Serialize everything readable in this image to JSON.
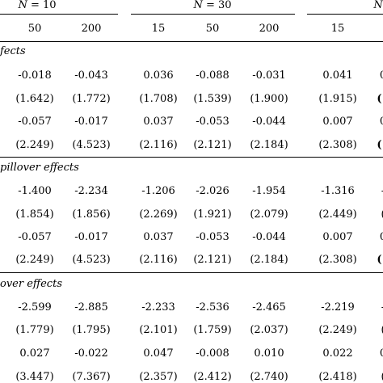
{
  "header": {
    "groups": [
      {
        "label_var": "N",
        "label_eq": " = 10"
      },
      {
        "label_var": "N",
        "label_eq": " = 30"
      },
      {
        "label_var": "N",
        "label_eq": ""
      }
    ],
    "columns": [
      "50",
      "200",
      "15",
      "50",
      "200",
      "15"
    ]
  },
  "sections": [
    {
      "title": "fects",
      "rows": [
        [
          "-0.018",
          "-0.043",
          "0.036",
          "-0.088",
          "-0.031",
          "0.041",
          "0"
        ],
        [
          "(1.642)",
          "(1.772)",
          "(1.708)",
          "(1.539)",
          "(1.900)",
          "(1.915)",
          "(1"
        ],
        [
          "-0.057",
          "-0.017",
          "0.037",
          "-0.053",
          "-0.044",
          "0.007",
          "0"
        ],
        [
          "(2.249)",
          "(4.523)",
          "(2.116)",
          "(2.121)",
          "(2.184)",
          "(2.308)",
          "(1"
        ]
      ]
    },
    {
      "title": "pillover effects",
      "rows": [
        [
          "-1.400",
          "-2.234",
          "-1.206",
          "-2.026",
          "-1.954",
          "-1.316",
          "-"
        ],
        [
          "(1.854)",
          "(1.856)",
          "(2.269)",
          "(1.921)",
          "(2.079)",
          "(2.449)",
          "("
        ],
        [
          "-0.057",
          "-0.017",
          "0.037",
          "-0.053",
          "-0.044",
          "0.007",
          "0"
        ],
        [
          "(2.249)",
          "(4.523)",
          "(2.116)",
          "(2.121)",
          "(2.184)",
          "(2.308)",
          "(1"
        ]
      ]
    },
    {
      "title": "over effects",
      "rows": [
        [
          "-2.599",
          "-2.885",
          "-2.233",
          "-2.536",
          "-2.465",
          "-2.219",
          "-"
        ],
        [
          "(1.779)",
          "(1.795)",
          "(2.101)",
          "(1.759)",
          "(2.037)",
          "(2.249)",
          "("
        ],
        [
          "0.027",
          "-0.022",
          "0.047",
          "-0.008",
          "0.010",
          "0.022",
          "0"
        ],
        [
          "(3.447)",
          "(7.367)",
          "(2.357)",
          "(2.412)",
          "(2.740)",
          "(2.418)",
          "("
        ]
      ]
    }
  ]
}
